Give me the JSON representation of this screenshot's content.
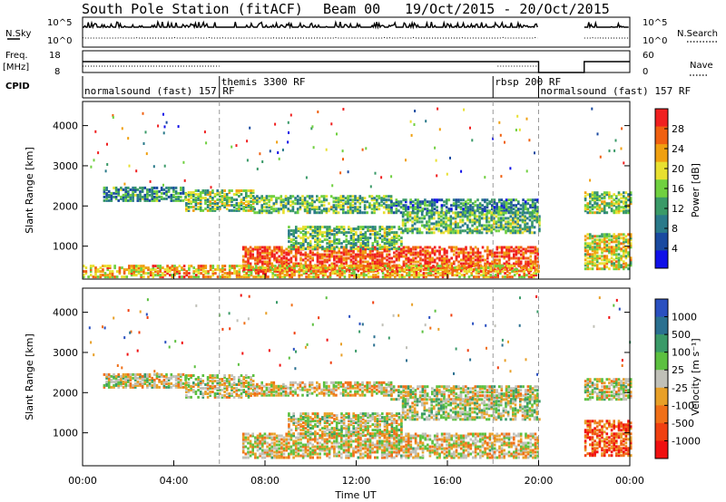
{
  "header": {
    "station": "South Pole Station (fitACF)",
    "beam": "Beam 00",
    "date_range": "19/Oct/2015 - 20/Oct/2015"
  },
  "summary": {
    "nsky_label": "N.Sky",
    "nsky_ticks": [
      "10^5",
      "10^0"
    ],
    "nsearch_label": "N.Search",
    "freq_label": "Freq.",
    "freq_unit": "[MHz]",
    "freq_ticks": [
      "18",
      "8"
    ],
    "nave_label": "Nave",
    "nave_ticks": [
      "60",
      "0"
    ],
    "cpid_label": "CPID",
    "cpid_entries": [
      {
        "label": "normalsound (fast) 157 RF",
        "row": "lower",
        "start_hour": 0
      },
      {
        "label": "themis 3300 RF",
        "row": "upper",
        "start_hour": 6
      },
      {
        "label": "rbsp 200 RF",
        "row": "upper",
        "start_hour": 18
      },
      {
        "label": "normalsound (fast) 157 RF",
        "row": "lower",
        "start_hour": 20
      }
    ]
  },
  "chart_data": [
    {
      "type": "heatmap",
      "name": "power",
      "ylabel": "Slant Range [km]",
      "y_ticks": [
        "4000",
        "3000",
        "2000",
        "1000"
      ],
      "ylim": [
        180,
        4600
      ],
      "xlim": [
        0,
        24
      ],
      "colorbar_label": "Power [dB]",
      "colorbar_colors": [
        "#f02020",
        "#f06010",
        "#f0a010",
        "#e8e030",
        "#70d040",
        "#3a9a68",
        "#2a7a8a",
        "#1a4aa0",
        "#1010e8"
      ],
      "colorbar_ticks": [
        "28",
        "24",
        "20",
        "16",
        "12",
        "8",
        "4"
      ],
      "gaps": [
        {
          "from": 20,
          "to": 22
        }
      ],
      "regions": [
        {
          "t": [
            0.9,
            4.5
          ],
          "r": [
            2100,
            2450
          ],
          "level": 0.35
        },
        {
          "t": [
            4.5,
            7.5
          ],
          "r": [
            1850,
            2350
          ],
          "level": 0.5
        },
        {
          "t": [
            7.5,
            13.5
          ],
          "r": [
            1800,
            2250
          ],
          "level": 0.45
        },
        {
          "t": [
            13.5,
            20
          ],
          "r": [
            1800,
            2150
          ],
          "level": 0.3
        },
        {
          "t": [
            7,
            20
          ],
          "r": [
            350,
            950
          ],
          "level": 0.9
        },
        {
          "t": [
            9,
            14
          ],
          "r": [
            900,
            1450
          ],
          "level": 0.45
        },
        {
          "t": [
            14,
            20
          ],
          "r": [
            1300,
            1800
          ],
          "level": 0.45
        },
        {
          "t": [
            22,
            24
          ],
          "r": [
            1800,
            2300
          ],
          "level": 0.5
        },
        {
          "t": [
            22,
            24
          ],
          "r": [
            400,
            1300
          ],
          "level": 0.6
        },
        {
          "t": [
            0,
            20
          ],
          "r": [
            200,
            500
          ],
          "level": 0.7
        }
      ]
    },
    {
      "type": "heatmap",
      "name": "velocity",
      "ylabel": "Slant Range [km]",
      "y_ticks": [
        "4000",
        "3000",
        "2000",
        "1000"
      ],
      "ylim": [
        180,
        4600
      ],
      "xlim": [
        0,
        24
      ],
      "colorbar_label": "Velocity [m s⁻¹]",
      "colorbar_colors": [
        "#2a50c0",
        "#2a7090",
        "#3a9a68",
        "#5cc040",
        "#c0c0b8",
        "#e8a028",
        "#f07018",
        "#f04010",
        "#f01010"
      ],
      "colorbar_ticks": [
        "1000",
        "500",
        "100",
        "25",
        "-25",
        "-100",
        "-500",
        "-1000"
      ],
      "gaps": [
        {
          "from": 20,
          "to": 22
        }
      ],
      "regions": [
        {
          "t": [
            0.9,
            4.5
          ],
          "r": [
            2100,
            2450
          ],
          "level": 0.5
        },
        {
          "t": [
            4.5,
            7.5
          ],
          "r": [
            1850,
            2400
          ],
          "level": 0.5
        },
        {
          "t": [
            7.5,
            13.5
          ],
          "r": [
            1900,
            2250
          ],
          "level": 0.45
        },
        {
          "t": [
            13.5,
            20
          ],
          "r": [
            1800,
            2150
          ],
          "level": 0.5
        },
        {
          "t": [
            7,
            20
          ],
          "r": [
            350,
            950
          ],
          "level": 0.45
        },
        {
          "t": [
            9,
            14
          ],
          "r": [
            900,
            1450
          ],
          "level": 0.5
        },
        {
          "t": [
            14,
            20
          ],
          "r": [
            1300,
            1800
          ],
          "level": 0.55
        },
        {
          "t": [
            22,
            24
          ],
          "r": [
            1800,
            2300
          ],
          "level": 0.5
        },
        {
          "t": [
            22,
            24
          ],
          "r": [
            400,
            1300
          ],
          "level": 0.2
        }
      ]
    }
  ],
  "x_axis": {
    "label": "Time UT",
    "ticks": [
      "00:00",
      "04:00",
      "08:00",
      "12:00",
      "16:00",
      "20:00",
      "00:00"
    ],
    "tick_hours": [
      0,
      4,
      8,
      12,
      16,
      20,
      24
    ],
    "vertical_dashes_hours": [
      6,
      18,
      20
    ]
  }
}
